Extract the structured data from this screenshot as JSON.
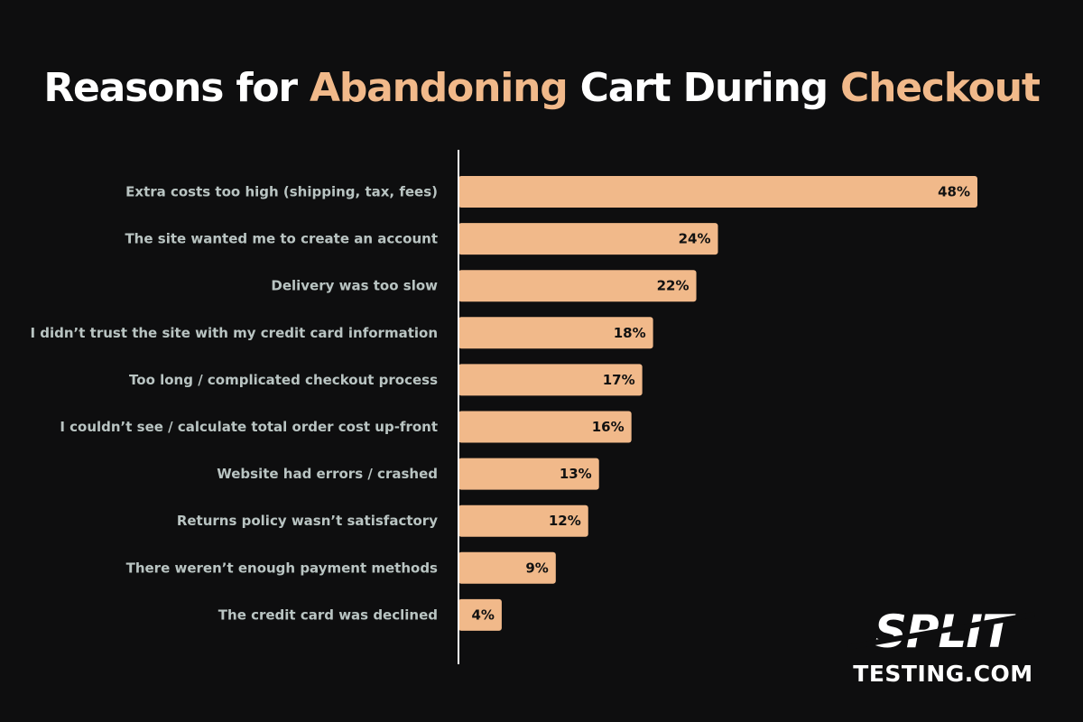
{
  "title": {
    "part1": "Reasons for ",
    "highlight1": "Abandoning",
    "part2": " Cart During ",
    "highlight2": "Checkout"
  },
  "colors": {
    "background": "#0e0e0f",
    "bar": "#f1b98a",
    "highlight": "#f1b98a",
    "label": "#b9c4c2",
    "axis": "#ffffff"
  },
  "chart_data": {
    "type": "bar",
    "orientation": "horizontal",
    "title": "Reasons for Abandoning Cart During Checkout",
    "categories": [
      "Extra costs too high (shipping, tax, fees)",
      "The site wanted me to create an account",
      "Delivery was too slow",
      "I didn’t trust the site with my credit card information",
      "Too long / complicated checkout process",
      "I couldn’t see / calculate total order cost up-front",
      "Website had errors / crashed",
      "Returns policy wasn’t satisfactory",
      "There weren’t enough payment methods",
      "The credit card was declined"
    ],
    "values": [
      48,
      24,
      22,
      18,
      17,
      16,
      13,
      12,
      9,
      4
    ],
    "value_labels": [
      "48%",
      "24%",
      "22%",
      "18%",
      "17%",
      "16%",
      "13%",
      "12%",
      "9%",
      "4%"
    ],
    "unit": "%",
    "xlim": [
      0,
      48
    ],
    "grid": false,
    "legend": "none"
  },
  "logo": {
    "line1": "SPLIT",
    "line2": "TESTING.COM"
  }
}
